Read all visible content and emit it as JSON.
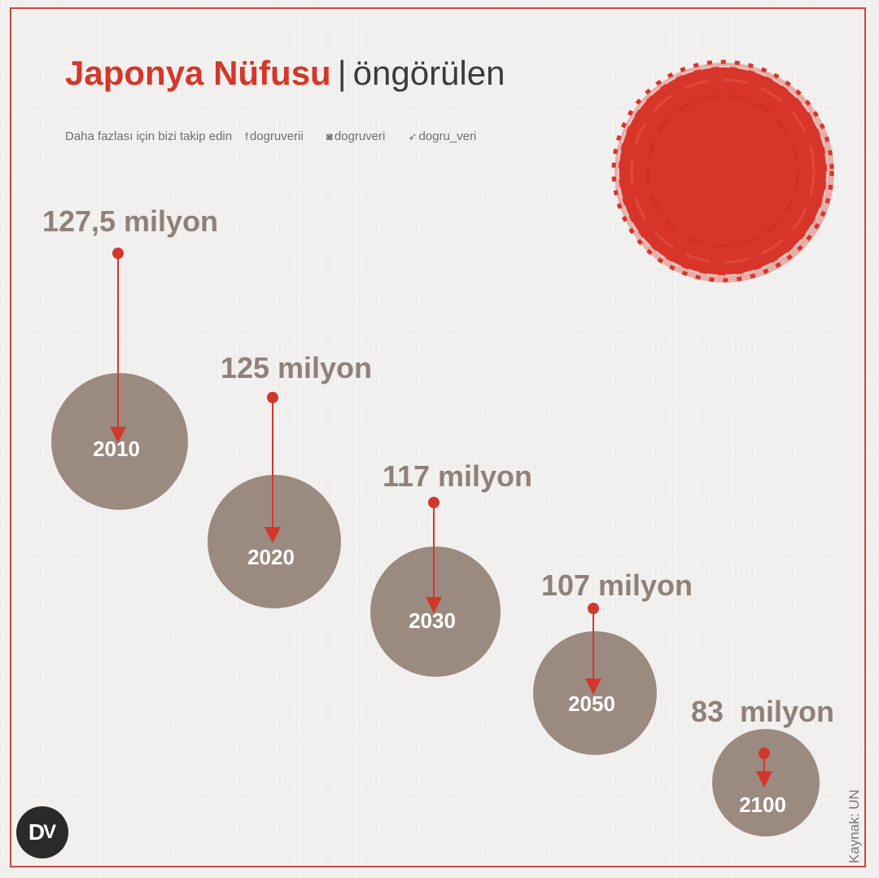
{
  "header": {
    "title_main": "Japonya Nüfusu",
    "title_sep": "|",
    "title_sub": "öngörülen"
  },
  "social": {
    "follow_text": "Daha fazlası için bizi takip edin",
    "facebook": "dogruverii",
    "instagram": "dogruveri",
    "twitter": "dogru_veri",
    "facebook_icon": "facebook-icon",
    "instagram_icon": "instagram-icon",
    "twitter_icon": "twitter-icon"
  },
  "source": "Kaynak: UN",
  "logo": {
    "text_d": "D",
    "text_v": "V"
  },
  "colors": {
    "accent": "#d3372b",
    "circle": "#9b8a80",
    "value_text": "#8f817a"
  },
  "chart_data": {
    "type": "scatter",
    "title": "Japonya Nüfusu | öngörülen",
    "categories": [
      "2010",
      "2020",
      "2030",
      "2050",
      "2100"
    ],
    "series": [
      {
        "values": [
          127.5,
          125,
          117,
          107,
          83
        ],
        "labels": [
          "127,5 milyon",
          "125 milyon",
          "117 milyon",
          "107 milyon",
          "83  milyon"
        ]
      }
    ]
  }
}
